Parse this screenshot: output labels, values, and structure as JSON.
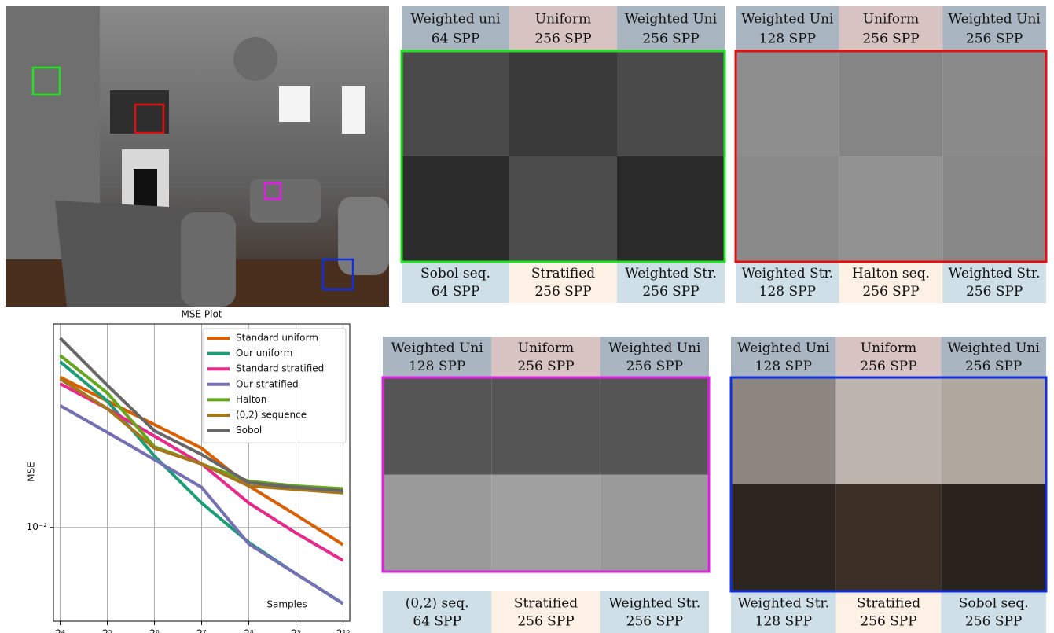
{
  "chart_data": {
    "type": "line",
    "title": "MSE Plot",
    "xlabel": "Samples",
    "ylabel": "MSE",
    "x": [
      16,
      32,
      64,
      128,
      256,
      512,
      1024
    ],
    "xscale": "log",
    "yscale": "log",
    "xlim": [
      14.5,
      1130
    ],
    "ylim": [
      0.004,
      0.073
    ],
    "xticks": [
      {
        "value": 16,
        "label": "2⁴"
      },
      {
        "value": 32,
        "label": "2⁵"
      },
      {
        "value": 64,
        "label": "2⁶"
      },
      {
        "value": 128,
        "label": "2⁷"
      },
      {
        "value": 256,
        "label": "2⁸"
      },
      {
        "value": 512,
        "label": "2⁹"
      },
      {
        "value": 1024,
        "label": "2¹⁰"
      }
    ],
    "yticks": [
      {
        "value": 0.01,
        "label": "10⁻²"
      }
    ],
    "grid": true,
    "legend": "upper right",
    "series": [
      {
        "name": "Standard uniform",
        "color": "#d95f02",
        "values": [
          0.0434,
          0.0344,
          0.0273,
          0.0217,
          0.015,
          0.0113,
          0.00845
        ]
      },
      {
        "name": "Our uniform",
        "color": "#1b9e77",
        "values": [
          0.0505,
          0.0344,
          0.0201,
          0.0127,
          0.00864,
          0.00636,
          0.00475
        ]
      },
      {
        "name": "Standard stratified",
        "color": "#e7298a",
        "values": [
          0.0407,
          0.0319,
          0.0244,
          0.0186,
          0.0127,
          0.00947,
          0.00724
        ]
      },
      {
        "name": "Our stratified",
        "color": "#7570b3",
        "values": [
          0.0329,
          0.0253,
          0.0194,
          0.0148,
          0.00851,
          0.00636,
          0.00475
        ]
      },
      {
        "name": "Halton",
        "color": "#66a61e",
        "values": [
          0.0537,
          0.0372,
          0.022,
          0.0186,
          0.0157,
          0.015,
          0.0146
        ]
      },
      {
        "name": "(0,2) sequence",
        "color": "#a6761d",
        "values": [
          0.0427,
          0.0319,
          0.0217,
          0.0186,
          0.015,
          0.0145,
          0.014
        ]
      },
      {
        "name": "Sobol",
        "color": "#666666",
        "values": [
          0.0636,
          0.0401,
          0.0257,
          0.0204,
          0.0155,
          0.0148,
          0.0143
        ]
      }
    ]
  },
  "panels": [
    {
      "top": [
        [
          "Weighted uni",
          "64 SPP"
        ],
        [
          "Uniform",
          "256 SPP"
        ],
        [
          "Weighted Uni",
          "256 SPP"
        ]
      ],
      "bottom": [
        [
          "Sobol seq.",
          "64 SPP"
        ],
        [
          "Stratified",
          "256 SPP"
        ],
        [
          "Weighted Str.",
          "256 SPP"
        ]
      ]
    },
    {
      "top": [
        [
          "Weighted Uni",
          "128 SPP"
        ],
        [
          "Uniform",
          "256 SPP"
        ],
        [
          "Weighted Uni",
          "256 SPP"
        ]
      ],
      "bottom": [
        [
          "Weighted Str.",
          "128 SPP"
        ],
        [
          "Halton seq.",
          "256 SPP"
        ],
        [
          "Weighted Str.",
          "256 SPP"
        ]
      ]
    },
    {
      "top": [
        [
          "Weighted Uni",
          "128 SPP"
        ],
        [
          "Uniform",
          "256 SPP"
        ],
        [
          "Weighted Uni",
          "256 SPP"
        ]
      ],
      "bottom": [
        [
          "(0,2) seq.",
          "64 SPP"
        ],
        [
          "Stratified",
          "256 SPP"
        ],
        [
          "Weighted Str.",
          "256 SPP"
        ]
      ]
    },
    {
      "top": [
        [
          "Weighted Uni",
          "128 SPP"
        ],
        [
          "Uniform",
          "256 SPP"
        ],
        [
          "Weighted Uni",
          "256 SPP"
        ]
      ],
      "bottom": [
        [
          "Weighted Str.",
          "128 SPP"
        ],
        [
          "Stratified",
          "256 SPP"
        ],
        [
          "Sobol seq.",
          "256 SPP"
        ]
      ]
    }
  ]
}
